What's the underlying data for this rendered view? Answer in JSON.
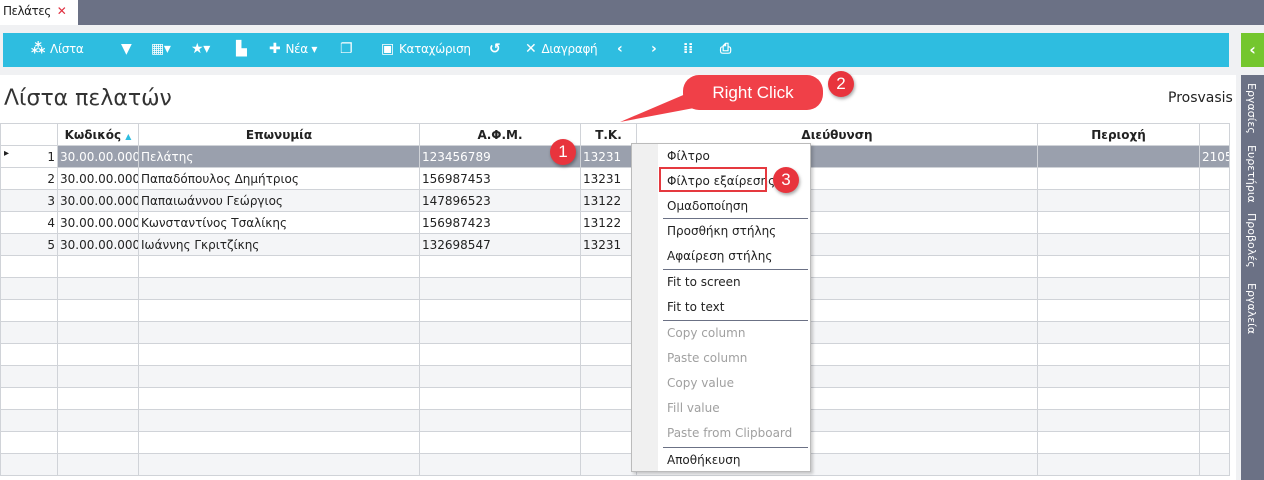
{
  "tab": {
    "label": "Πελάτες",
    "close": "✕"
  },
  "toolbar": {
    "list": "Λίστα",
    "new": "Νέα",
    "save": "Καταχώριση",
    "delete": "Διαγραφή"
  },
  "page": {
    "title": "Λίστα πελατών",
    "user": "Prosvasis"
  },
  "sidebar": [
    "Εργασίες",
    "Ευρετήρια",
    "Προβολές",
    "Εργαλεία"
  ],
  "grid": {
    "headers": [
      "",
      "Κωδικός",
      "Επωνυμία",
      "Α.Φ.Μ.",
      "Τ.Κ.",
      "Διεύθυνση",
      "Περιοχή",
      ""
    ],
    "rows": [
      [
        "1",
        "30.00.00.000",
        "Πελάτης",
        "123456789",
        "13231",
        "",
        "",
        "2105"
      ],
      [
        "2",
        "30.00.00.000",
        "Παπαδόπουλος Δημήτριος",
        "156987453",
        "13231",
        "",
        "",
        ""
      ],
      [
        "3",
        "30.00.00.000",
        "Παπαιωάννου Γεώργιος",
        "147896523",
        "13122",
        "",
        "",
        ""
      ],
      [
        "4",
        "30.00.00.000",
        "Κωνσταντίνος Τσαλίκης",
        "156987423",
        "13122",
        "",
        "",
        ""
      ],
      [
        "5",
        "30.00.00.000",
        "Ιωάννης Γκριτζίκης",
        "132698547",
        "13231",
        "",
        "",
        ""
      ]
    ]
  },
  "context_menu": [
    "Φίλτρο",
    "Φίλτρο εξαίρεσης",
    "Ομαδοποίηση",
    "Προσθήκη στήλης",
    "Αφαίρεση στήλης",
    "Fit to screen",
    "Fit to text",
    "Copy column",
    "Paste column",
    "Copy value",
    "Fill value",
    "Paste from Clipboard",
    "Αποθήκευση"
  ],
  "annotation": {
    "callout": "Right Click",
    "badges": [
      "1",
      "2",
      "3"
    ],
    "color": "#e8343d"
  },
  "colors": {
    "toolbar": "#2ebde0",
    "selected_row": "#9aa0ad",
    "side": "#6b7185"
  }
}
